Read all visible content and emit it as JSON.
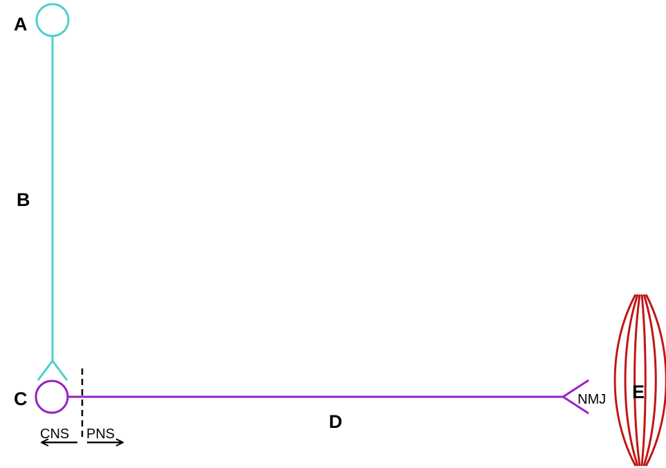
{
  "labels": {
    "a": "A",
    "b": "B",
    "c": "C",
    "d": "D",
    "e": "E",
    "nmj": "NMJ",
    "cns": "CNS",
    "pns": "PNS"
  },
  "colors": {
    "upper_neuron": "#4ccfcf",
    "lower_neuron": "#9a1fc4",
    "muscle": "#c01515",
    "text": "#000000"
  }
}
